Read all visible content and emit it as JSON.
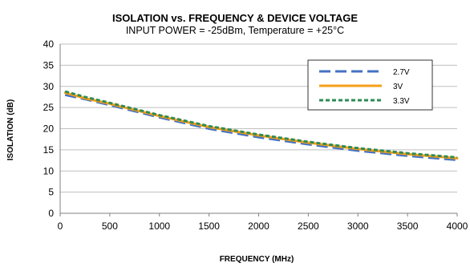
{
  "chart_data": {
    "type": "line",
    "title": "ISOLATION vs. FREQUENCY & DEVICE VOLTAGE",
    "subtitle": "INPUT POWER = -25dBm, Temperature = +25°C",
    "xlabel": "FREQUENCY (MHz)",
    "ylabel": "ISOLATION (dB)",
    "xlim": [
      0,
      4000
    ],
    "ylim": [
      0,
      40
    ],
    "xticks": [
      0,
      500,
      1000,
      1500,
      2000,
      2500,
      3000,
      3500,
      4000
    ],
    "yticks": [
      0,
      5,
      10,
      15,
      20,
      25,
      30,
      35,
      40
    ],
    "grid": "horizontal",
    "legend_position": "top-right",
    "x": [
      50,
      250,
      500,
      1000,
      1500,
      2000,
      2500,
      3000,
      3500,
      4000
    ],
    "series": [
      {
        "name": "2.7V",
        "color": "#4472C4",
        "style": "long-dash",
        "values": [
          28.0,
          27.0,
          25.6,
          22.7,
          20.0,
          18.0,
          16.3,
          14.8,
          13.6,
          12.6
        ]
      },
      {
        "name": "3V",
        "color": "#F5A01A",
        "style": "solid",
        "values": [
          28.5,
          27.2,
          25.9,
          23.0,
          20.4,
          18.4,
          16.7,
          15.2,
          14.0,
          13.0
        ]
      },
      {
        "name": "3.3V",
        "color": "#2E8B57",
        "style": "short-dash",
        "values": [
          28.8,
          27.5,
          26.1,
          23.2,
          20.6,
          18.6,
          16.9,
          15.4,
          14.2,
          13.2
        ]
      }
    ]
  }
}
